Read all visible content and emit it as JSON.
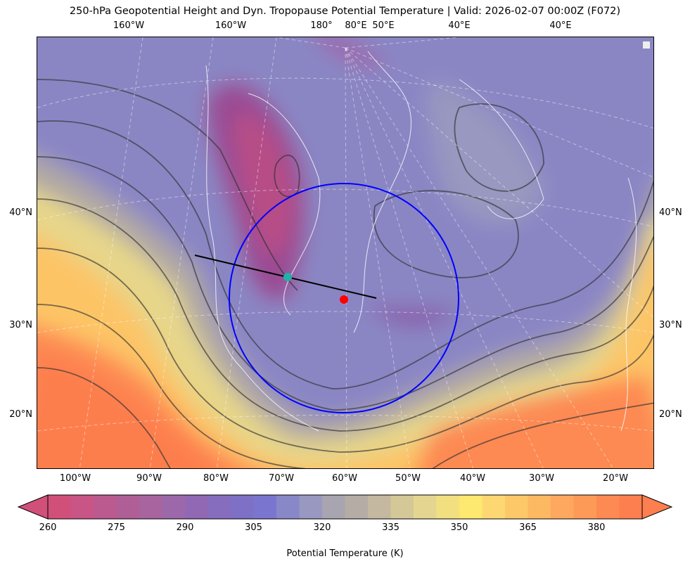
{
  "title": "250-hPa Geopotential Height and Dyn. Tropopause Potential Temperature   |  Valid: 2026-02-07 00:00Z (F072)",
  "top_labels": [
    "160°W",
    "160°W",
    "180°",
    "80°E",
    "50°E",
    "40°E",
    "40°E"
  ],
  "left_labels": [
    "40°N",
    "30°N",
    "20°N"
  ],
  "right_labels": [
    "40°N",
    "30°N",
    "20°N"
  ],
  "bottom_labels": [
    "100°W",
    "90°W",
    "80°W",
    "70°W",
    "60°W",
    "50°W",
    "40°W",
    "30°W",
    "20°W"
  ],
  "map": {
    "field": "Dynamic tropopause potential temperature with 250-hPa geopotential height contours",
    "markers": {
      "circle_color": "#0000ff",
      "cross_section_line_color": "#000000",
      "point_start_color": "#20b2aa",
      "center_point_color": "#ff0000"
    }
  },
  "colorbar": {
    "label": "Potential Temperature (K)",
    "min": 260,
    "max": 390,
    "step": 5,
    "extend": "both",
    "ticks": [
      "260",
      "275",
      "290",
      "305",
      "320",
      "335",
      "350",
      "365",
      "380"
    ],
    "colors": [
      "#d0507a",
      "#c85585",
      "#bb5a8f",
      "#b05e96",
      "#a8649f",
      "#9c68aa",
      "#9068b4",
      "#876dbe",
      "#7d70c6",
      "#7a76d0",
      "#8888c8",
      "#9898c0",
      "#a8a4b0",
      "#b5aca6",
      "#c4b8a0",
      "#d4c898",
      "#e4d690",
      "#f2e080",
      "#fde870",
      "#fdd872",
      "#fdc868",
      "#fdb862",
      "#fda85e",
      "#fd9a58",
      "#fd8a52",
      "#fd7e4e"
    ]
  }
}
